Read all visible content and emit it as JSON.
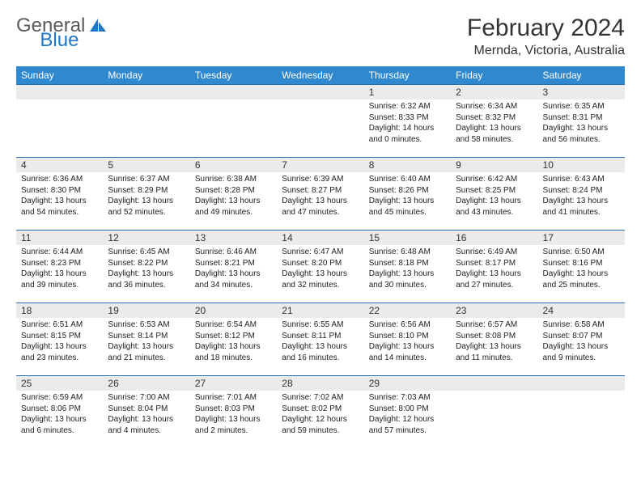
{
  "brand": {
    "text1": "General",
    "text2": "Blue"
  },
  "title": "February 2024",
  "location": "Mernda, Victoria, Australia",
  "colors": {
    "header_bg": "#3088cf",
    "header_text": "#ffffff",
    "daynum_bg": "#eceaea",
    "cell_border": "#2a6db3",
    "brand_gray": "#5a5a5a",
    "brand_blue": "#1e78c8",
    "page_bg": "#ffffff"
  },
  "day_headers": [
    "Sunday",
    "Monday",
    "Tuesday",
    "Wednesday",
    "Thursday",
    "Friday",
    "Saturday"
  ],
  "weeks": [
    [
      {
        "blank": true
      },
      {
        "blank": true
      },
      {
        "blank": true
      },
      {
        "blank": true
      },
      {
        "n": "1",
        "sunrise": "6:32 AM",
        "sunset": "8:33 PM",
        "dl": "14 hours and 0 minutes."
      },
      {
        "n": "2",
        "sunrise": "6:34 AM",
        "sunset": "8:32 PM",
        "dl": "13 hours and 58 minutes."
      },
      {
        "n": "3",
        "sunrise": "6:35 AM",
        "sunset": "8:31 PM",
        "dl": "13 hours and 56 minutes."
      }
    ],
    [
      {
        "n": "4",
        "sunrise": "6:36 AM",
        "sunset": "8:30 PM",
        "dl": "13 hours and 54 minutes."
      },
      {
        "n": "5",
        "sunrise": "6:37 AM",
        "sunset": "8:29 PM",
        "dl": "13 hours and 52 minutes."
      },
      {
        "n": "6",
        "sunrise": "6:38 AM",
        "sunset": "8:28 PM",
        "dl": "13 hours and 49 minutes."
      },
      {
        "n": "7",
        "sunrise": "6:39 AM",
        "sunset": "8:27 PM",
        "dl": "13 hours and 47 minutes."
      },
      {
        "n": "8",
        "sunrise": "6:40 AM",
        "sunset": "8:26 PM",
        "dl": "13 hours and 45 minutes."
      },
      {
        "n": "9",
        "sunrise": "6:42 AM",
        "sunset": "8:25 PM",
        "dl": "13 hours and 43 minutes."
      },
      {
        "n": "10",
        "sunrise": "6:43 AM",
        "sunset": "8:24 PM",
        "dl": "13 hours and 41 minutes."
      }
    ],
    [
      {
        "n": "11",
        "sunrise": "6:44 AM",
        "sunset": "8:23 PM",
        "dl": "13 hours and 39 minutes."
      },
      {
        "n": "12",
        "sunrise": "6:45 AM",
        "sunset": "8:22 PM",
        "dl": "13 hours and 36 minutes."
      },
      {
        "n": "13",
        "sunrise": "6:46 AM",
        "sunset": "8:21 PM",
        "dl": "13 hours and 34 minutes."
      },
      {
        "n": "14",
        "sunrise": "6:47 AM",
        "sunset": "8:20 PM",
        "dl": "13 hours and 32 minutes."
      },
      {
        "n": "15",
        "sunrise": "6:48 AM",
        "sunset": "8:18 PM",
        "dl": "13 hours and 30 minutes."
      },
      {
        "n": "16",
        "sunrise": "6:49 AM",
        "sunset": "8:17 PM",
        "dl": "13 hours and 27 minutes."
      },
      {
        "n": "17",
        "sunrise": "6:50 AM",
        "sunset": "8:16 PM",
        "dl": "13 hours and 25 minutes."
      }
    ],
    [
      {
        "n": "18",
        "sunrise": "6:51 AM",
        "sunset": "8:15 PM",
        "dl": "13 hours and 23 minutes."
      },
      {
        "n": "19",
        "sunrise": "6:53 AM",
        "sunset": "8:14 PM",
        "dl": "13 hours and 21 minutes."
      },
      {
        "n": "20",
        "sunrise": "6:54 AM",
        "sunset": "8:12 PM",
        "dl": "13 hours and 18 minutes."
      },
      {
        "n": "21",
        "sunrise": "6:55 AM",
        "sunset": "8:11 PM",
        "dl": "13 hours and 16 minutes."
      },
      {
        "n": "22",
        "sunrise": "6:56 AM",
        "sunset": "8:10 PM",
        "dl": "13 hours and 14 minutes."
      },
      {
        "n": "23",
        "sunrise": "6:57 AM",
        "sunset": "8:08 PM",
        "dl": "13 hours and 11 minutes."
      },
      {
        "n": "24",
        "sunrise": "6:58 AM",
        "sunset": "8:07 PM",
        "dl": "13 hours and 9 minutes."
      }
    ],
    [
      {
        "n": "25",
        "sunrise": "6:59 AM",
        "sunset": "8:06 PM",
        "dl": "13 hours and 6 minutes."
      },
      {
        "n": "26",
        "sunrise": "7:00 AM",
        "sunset": "8:04 PM",
        "dl": "13 hours and 4 minutes."
      },
      {
        "n": "27",
        "sunrise": "7:01 AM",
        "sunset": "8:03 PM",
        "dl": "13 hours and 2 minutes."
      },
      {
        "n": "28",
        "sunrise": "7:02 AM",
        "sunset": "8:02 PM",
        "dl": "12 hours and 59 minutes."
      },
      {
        "n": "29",
        "sunrise": "7:03 AM",
        "sunset": "8:00 PM",
        "dl": "12 hours and 57 minutes."
      },
      {
        "blank": true
      },
      {
        "blank": true
      }
    ]
  ],
  "labels": {
    "sunrise": "Sunrise:",
    "sunset": "Sunset:",
    "daylight": "Daylight:"
  }
}
